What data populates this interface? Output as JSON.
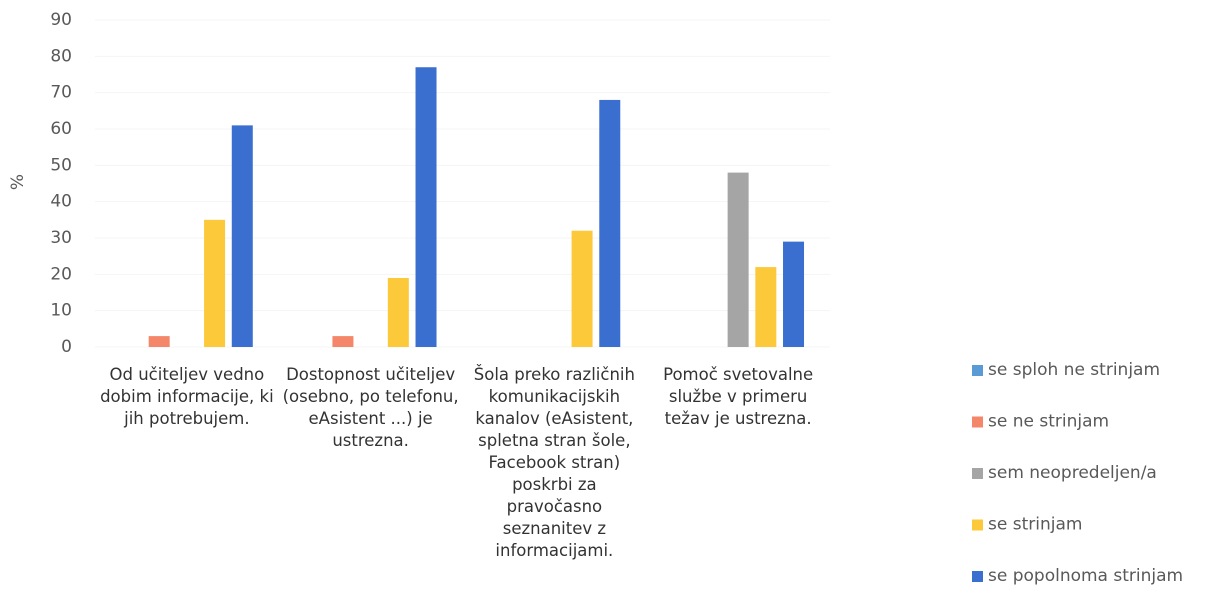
{
  "chart_data": {
    "type": "bar",
    "y_label": "%",
    "categories": [
      "Od učiteljev vedno dobim informacije, ki jih potrebujem.",
      "Dostopnost učiteljev (osebno, po telefonu, eAsistent ...) je ustrezna.",
      "Šola preko različnih komunikacijskih kanalov (eAsistent, spletna stran šole, Facebook stran) poskrbi za pravočasno seznanitev z informacijami.",
      "Pomoč svetovalne službe v primeru težav je ustrezna."
    ],
    "series": [
      {
        "name": "se sploh ne strinjam",
        "color": "#5b9bd5",
        "values": [
          0,
          0,
          0,
          0
        ]
      },
      {
        "name": "se ne strinjam",
        "color": "#f4866a",
        "values": [
          3,
          3,
          0,
          0
        ]
      },
      {
        "name": "sem neopredeljen/a",
        "color": "#a5a5a5",
        "values": [
          0,
          0,
          0,
          48
        ]
      },
      {
        "name": "se strinjam",
        "color": "#fcc93a",
        "values": [
          35,
          19,
          32,
          22
        ]
      },
      {
        "name": "se popolnoma strinjam",
        "color": "#3a6fd0",
        "values": [
          61,
          77,
          68,
          29
        ]
      }
    ],
    "ylim": [
      0,
      90
    ],
    "yticks": [
      0,
      10,
      20,
      30,
      40,
      50,
      60,
      70,
      80,
      90
    ],
    "grid": true,
    "legend": "right"
  }
}
